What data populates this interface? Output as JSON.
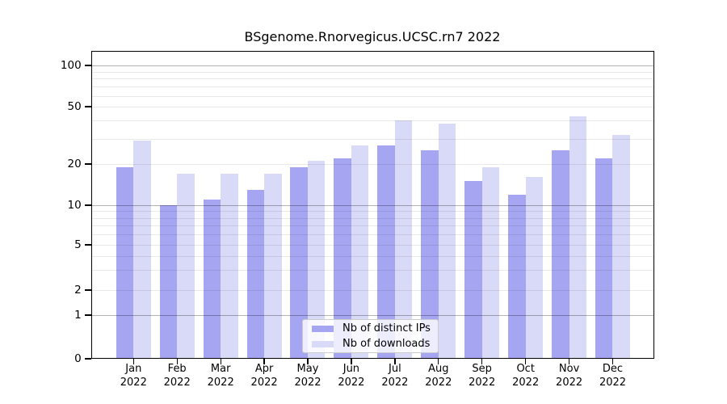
{
  "chart_data": {
    "type": "bar",
    "title": "BSgenome.Rnorvegicus.UCSC.rn7 2022",
    "categories": [
      "Jan",
      "Feb",
      "Mar",
      "Apr",
      "May",
      "Jun",
      "Jul",
      "Aug",
      "Sep",
      "Oct",
      "Nov",
      "Dec"
    ],
    "year": "2022",
    "series": [
      {
        "name": "Nb of distinct IPs",
        "color": "#a5a5f2",
        "values": [
          19,
          10,
          11,
          13,
          19,
          22,
          27,
          25,
          15,
          12,
          25,
          22
        ]
      },
      {
        "name": "Nb of downloads",
        "color": "#d9d9f8",
        "values": [
          29,
          17,
          17,
          17,
          21,
          27,
          40,
          38,
          19,
          16,
          43,
          32
        ]
      }
    ],
    "y_axis": {
      "ticks": [
        0,
        1,
        2,
        5,
        10,
        20,
        50,
        100
      ],
      "major_gridlines": [
        1,
        10,
        100
      ],
      "minor_gridlines": [
        3,
        4,
        6,
        7,
        8,
        9,
        30,
        40,
        60,
        70,
        80,
        90
      ],
      "scale": "log-like",
      "ylim": [
        0,
        128
      ]
    },
    "xlabel": "",
    "ylabel": "",
    "grid": true,
    "legend_position": "bottom-center"
  },
  "colors": {
    "distinct_ips": "#a5a5f2",
    "downloads": "#d9d9f8",
    "axis": "#000000",
    "background": "#ffffff"
  }
}
